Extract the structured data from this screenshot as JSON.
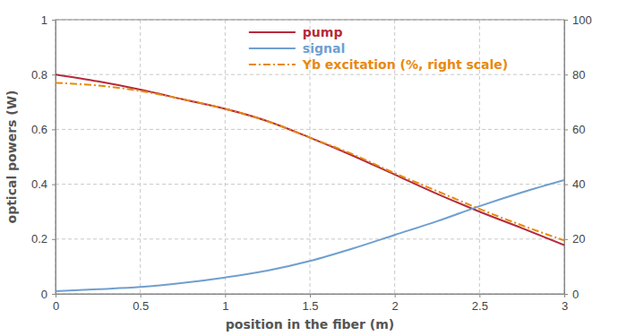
{
  "chart_data": {
    "type": "line",
    "x_label": "position in the fiber (m)",
    "y_label": "optical powers (W)",
    "x": [
      0,
      0.25,
      0.5,
      0.75,
      1,
      1.25,
      1.5,
      1.75,
      2,
      2.25,
      2.5,
      2.75,
      3
    ],
    "series": [
      {
        "name": "pump",
        "color": "#b52a3a",
        "line_style": "solid",
        "values": [
          0.8,
          0.775,
          0.745,
          0.71,
          0.675,
          0.63,
          0.57,
          0.505,
          0.435,
          0.365,
          0.3,
          0.24,
          0.178
        ]
      },
      {
        "name": "signal",
        "color": "#6f9fcf",
        "line_style": "solid",
        "values": [
          0.01,
          0.017,
          0.025,
          0.04,
          0.06,
          0.085,
          0.12,
          0.165,
          0.215,
          0.265,
          0.32,
          0.37,
          0.415
        ]
      },
      {
        "name": "Yb excitation (%, right scale)",
        "color": "#e8890c",
        "line_style": "dash-dot",
        "axis": "y2",
        "values": [
          77,
          76,
          74,
          71,
          67.5,
          63,
          57,
          51,
          44,
          37.5,
          31,
          25,
          19.5
        ]
      }
    ],
    "xlim": [
      0,
      3
    ],
    "xticks": [
      0,
      0.5,
      1,
      1.5,
      2,
      2.5,
      3
    ],
    "ylim": [
      0,
      1
    ],
    "yticks": [
      0,
      0.2,
      0.4,
      0.6,
      0.8,
      1
    ],
    "y2lim": [
      0,
      100
    ],
    "y2ticks": [
      0,
      20,
      40,
      60,
      80,
      100
    ],
    "grid": true,
    "legend": "top"
  }
}
